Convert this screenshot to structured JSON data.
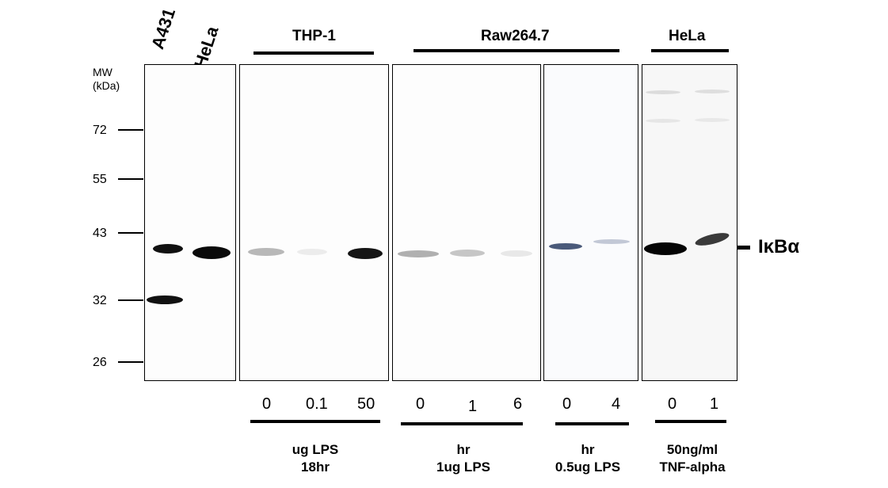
{
  "lane_labels_rotated": [
    "A431",
    "HeLa"
  ],
  "group_headers": {
    "thp1": "THP-1",
    "raw": "Raw264.7",
    "hela": "HeLa"
  },
  "mw": {
    "title_line1": "MW",
    "title_line2": "(kDa)",
    "markers": [
      "72",
      "55",
      "43",
      "32",
      "26"
    ]
  },
  "target_label": "IκBα",
  "lane_values": {
    "thp1": [
      "0",
      "0.1",
      "50"
    ],
    "raw_hr": [
      "0",
      "1",
      "6"
    ],
    "raw_lps": [
      "0",
      "4"
    ],
    "hela": [
      "0",
      "1"
    ]
  },
  "conditions": {
    "thp1": [
      "ug LPS",
      "18hr"
    ],
    "raw_hr": [
      "hr",
      "1ug LPS"
    ],
    "raw_lps": [
      "hr",
      "0.5ug LPS"
    ],
    "hela": [
      "50ng/ml",
      "TNF-alpha"
    ]
  }
}
